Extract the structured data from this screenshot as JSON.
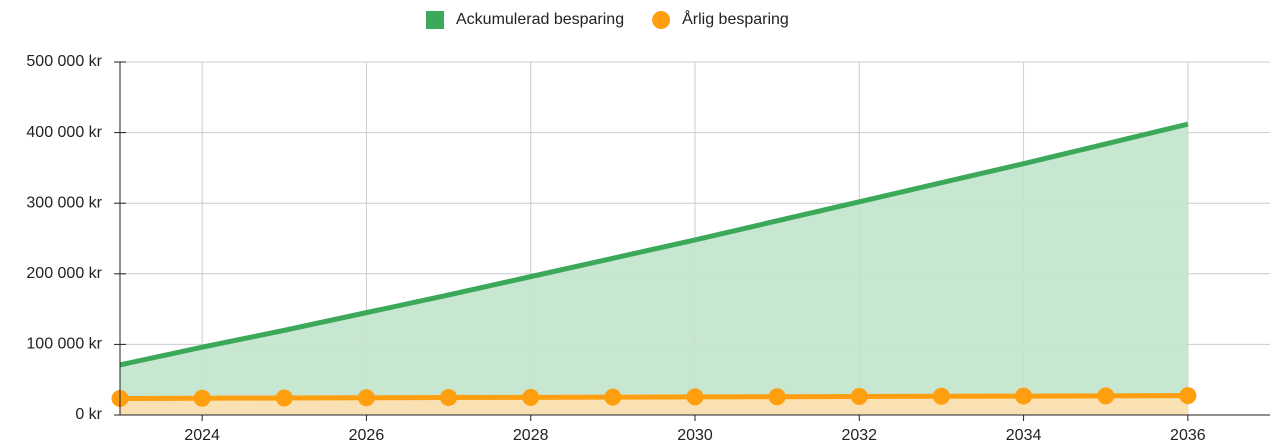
{
  "chart_data": {
    "type": "area",
    "x": [
      2023,
      2024,
      2025,
      2026,
      2027,
      2028,
      2029,
      2030,
      2031,
      2032,
      2033,
      2034,
      2035,
      2036
    ],
    "series": [
      {
        "name": "Ackumulerad besparing",
        "color": "#3ca85a",
        "fill": "#c2e4cb",
        "marker": "square",
        "values": [
          71000,
          96000,
          120000,
          145000,
          170000,
          196000,
          222000,
          248000,
          275000,
          302000,
          329000,
          356000,
          384000,
          412000
        ]
      },
      {
        "name": "Årlig besparing",
        "color": "#ff9e0f",
        "fill": "#ffe0b0",
        "marker": "circle",
        "values": [
          23400,
          23800,
          24100,
          24400,
          24700,
          25000,
          25300,
          25600,
          25900,
          26200,
          26500,
          26800,
          27100,
          27500
        ]
      }
    ],
    "xlim": [
      2023,
      2037
    ],
    "xticks": [
      2024,
      2026,
      2028,
      2030,
      2032,
      2034,
      2036
    ],
    "ylim": [
      0,
      500000
    ],
    "yticks": [
      {
        "value": 0,
        "label": "0 kr"
      },
      {
        "value": 100000,
        "label": "100 000 kr"
      },
      {
        "value": 200000,
        "label": "200 000 kr"
      },
      {
        "value": 300000,
        "label": "300 000 kr"
      },
      {
        "value": 400000,
        "label": "400 000 kr"
      },
      {
        "value": 500000,
        "label": "500 000 kr"
      }
    ],
    "grid": true,
    "legend": "top"
  }
}
